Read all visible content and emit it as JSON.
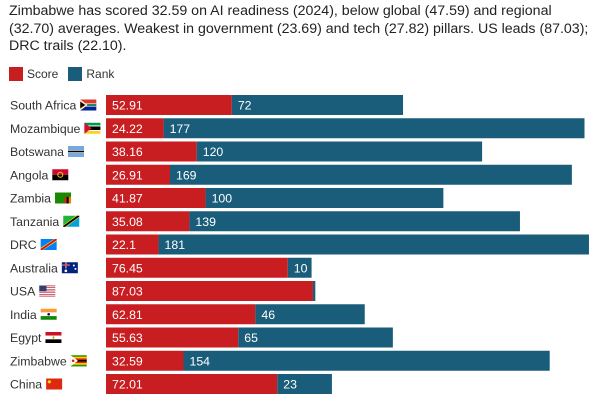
{
  "chart_data": {
    "type": "bar",
    "orientation": "horizontal",
    "stacked": true,
    "title": "Zimbabwe has scored 32.59 on AI readiness (2024), below global (47.59) and regional (32.70) averages. Weakest in government (23.69) and tech (27.82) pillars. US leads (87.03); DRC trails (22.10).",
    "xlabel": "",
    "ylabel": "",
    "legend_position": "top-left",
    "grid": false,
    "categories": [
      "South Africa",
      "Mozambique",
      "Botswana",
      "Angola",
      "Zambia",
      "Tanzania",
      "DRC",
      "Australia",
      "USA",
      "India",
      "Egypt",
      "Zimbabwe",
      "China"
    ],
    "flags": [
      "za",
      "mz",
      "bw",
      "ao",
      "zm",
      "tz",
      "cd",
      "au",
      "us",
      "in",
      "eg",
      "zw",
      "cn"
    ],
    "series": [
      {
        "name": "Score",
        "color": "#c81e22",
        "values": [
          52.91,
          24.22,
          38.16,
          26.91,
          41.87,
          35.08,
          22.1,
          76.45,
          87.03,
          62.81,
          55.63,
          32.59,
          72.01
        ],
        "labels": [
          "52.91",
          "24.22",
          "38.16",
          "26.91",
          "41.87",
          "35.08",
          "22.1",
          "76.45",
          "87.03",
          "62.81",
          "55.63",
          "32.59",
          "72.01"
        ]
      },
      {
        "name": "Rank",
        "color": "#1a5d7a",
        "values": [
          72,
          177,
          120,
          169,
          100,
          139,
          181,
          10,
          1,
          46,
          65,
          154,
          23
        ],
        "labels": [
          "72",
          "177",
          "120",
          "169",
          "100",
          "139",
          "181",
          "10",
          "",
          "46",
          "65",
          "154",
          "23"
        ]
      }
    ],
    "xlim": [
      0,
      205
    ]
  }
}
